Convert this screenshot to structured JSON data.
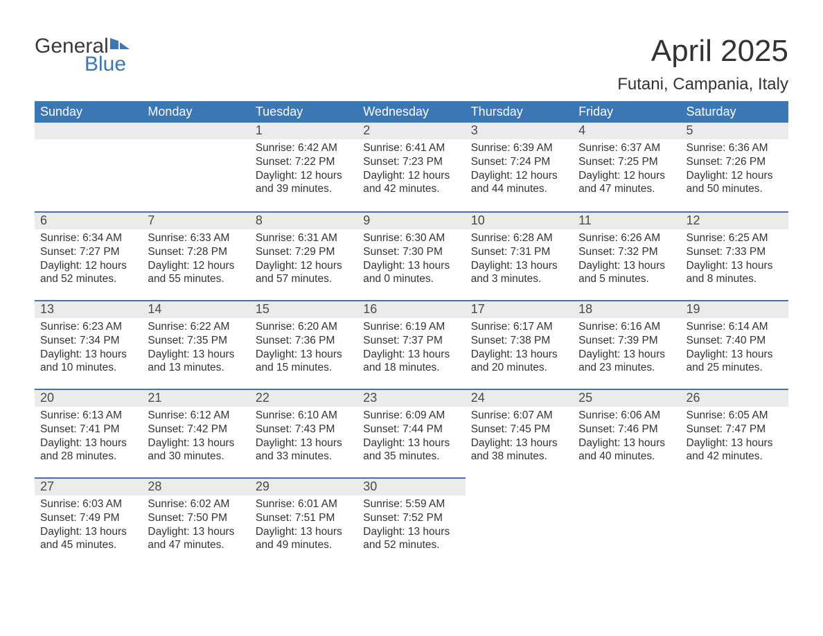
{
  "brand": {
    "word1": "General",
    "word2": "Blue",
    "word1_color": "#3a3a3a",
    "word2_color": "#3b76b5",
    "flag_color": "#3b76b5"
  },
  "title": "April 2025",
  "location": "Futani, Campania, Italy",
  "colors": {
    "header_bg": "#3b76b5",
    "header_text": "#ffffff",
    "daynum_bg": "#ebebeb",
    "row_divider": "#3b76b5",
    "body_text": "#333333",
    "page_bg": "#ffffff"
  },
  "weekdays": [
    "Sunday",
    "Monday",
    "Tuesday",
    "Wednesday",
    "Thursday",
    "Friday",
    "Saturday"
  ],
  "labels": {
    "sunrise": "Sunrise",
    "sunset": "Sunset",
    "daylight": "Daylight"
  },
  "weeks": [
    [
      {
        "empty": true
      },
      {
        "empty": true
      },
      {
        "day": 1,
        "sunrise": "6:42 AM",
        "sunset": "7:22 PM",
        "dl_h": 12,
        "dl_m": 39
      },
      {
        "day": 2,
        "sunrise": "6:41 AM",
        "sunset": "7:23 PM",
        "dl_h": 12,
        "dl_m": 42
      },
      {
        "day": 3,
        "sunrise": "6:39 AM",
        "sunset": "7:24 PM",
        "dl_h": 12,
        "dl_m": 44
      },
      {
        "day": 4,
        "sunrise": "6:37 AM",
        "sunset": "7:25 PM",
        "dl_h": 12,
        "dl_m": 47
      },
      {
        "day": 5,
        "sunrise": "6:36 AM",
        "sunset": "7:26 PM",
        "dl_h": 12,
        "dl_m": 50
      }
    ],
    [
      {
        "day": 6,
        "sunrise": "6:34 AM",
        "sunset": "7:27 PM",
        "dl_h": 12,
        "dl_m": 52
      },
      {
        "day": 7,
        "sunrise": "6:33 AM",
        "sunset": "7:28 PM",
        "dl_h": 12,
        "dl_m": 55
      },
      {
        "day": 8,
        "sunrise": "6:31 AM",
        "sunset": "7:29 PM",
        "dl_h": 12,
        "dl_m": 57
      },
      {
        "day": 9,
        "sunrise": "6:30 AM",
        "sunset": "7:30 PM",
        "dl_h": 13,
        "dl_m": 0
      },
      {
        "day": 10,
        "sunrise": "6:28 AM",
        "sunset": "7:31 PM",
        "dl_h": 13,
        "dl_m": 3
      },
      {
        "day": 11,
        "sunrise": "6:26 AM",
        "sunset": "7:32 PM",
        "dl_h": 13,
        "dl_m": 5
      },
      {
        "day": 12,
        "sunrise": "6:25 AM",
        "sunset": "7:33 PM",
        "dl_h": 13,
        "dl_m": 8
      }
    ],
    [
      {
        "day": 13,
        "sunrise": "6:23 AM",
        "sunset": "7:34 PM",
        "dl_h": 13,
        "dl_m": 10
      },
      {
        "day": 14,
        "sunrise": "6:22 AM",
        "sunset": "7:35 PM",
        "dl_h": 13,
        "dl_m": 13
      },
      {
        "day": 15,
        "sunrise": "6:20 AM",
        "sunset": "7:36 PM",
        "dl_h": 13,
        "dl_m": 15
      },
      {
        "day": 16,
        "sunrise": "6:19 AM",
        "sunset": "7:37 PM",
        "dl_h": 13,
        "dl_m": 18
      },
      {
        "day": 17,
        "sunrise": "6:17 AM",
        "sunset": "7:38 PM",
        "dl_h": 13,
        "dl_m": 20
      },
      {
        "day": 18,
        "sunrise": "6:16 AM",
        "sunset": "7:39 PM",
        "dl_h": 13,
        "dl_m": 23
      },
      {
        "day": 19,
        "sunrise": "6:14 AM",
        "sunset": "7:40 PM",
        "dl_h": 13,
        "dl_m": 25
      }
    ],
    [
      {
        "day": 20,
        "sunrise": "6:13 AM",
        "sunset": "7:41 PM",
        "dl_h": 13,
        "dl_m": 28
      },
      {
        "day": 21,
        "sunrise": "6:12 AM",
        "sunset": "7:42 PM",
        "dl_h": 13,
        "dl_m": 30
      },
      {
        "day": 22,
        "sunrise": "6:10 AM",
        "sunset": "7:43 PM",
        "dl_h": 13,
        "dl_m": 33
      },
      {
        "day": 23,
        "sunrise": "6:09 AM",
        "sunset": "7:44 PM",
        "dl_h": 13,
        "dl_m": 35
      },
      {
        "day": 24,
        "sunrise": "6:07 AM",
        "sunset": "7:45 PM",
        "dl_h": 13,
        "dl_m": 38
      },
      {
        "day": 25,
        "sunrise": "6:06 AM",
        "sunset": "7:46 PM",
        "dl_h": 13,
        "dl_m": 40
      },
      {
        "day": 26,
        "sunrise": "6:05 AM",
        "sunset": "7:47 PM",
        "dl_h": 13,
        "dl_m": 42
      }
    ],
    [
      {
        "day": 27,
        "sunrise": "6:03 AM",
        "sunset": "7:49 PM",
        "dl_h": 13,
        "dl_m": 45
      },
      {
        "day": 28,
        "sunrise": "6:02 AM",
        "sunset": "7:50 PM",
        "dl_h": 13,
        "dl_m": 47
      },
      {
        "day": 29,
        "sunrise": "6:01 AM",
        "sunset": "7:51 PM",
        "dl_h": 13,
        "dl_m": 49
      },
      {
        "day": 30,
        "sunrise": "5:59 AM",
        "sunset": "7:52 PM",
        "dl_h": 13,
        "dl_m": 52
      },
      {
        "empty": true,
        "noborder": true
      },
      {
        "empty": true,
        "noborder": true
      },
      {
        "empty": true,
        "noborder": true
      }
    ]
  ]
}
